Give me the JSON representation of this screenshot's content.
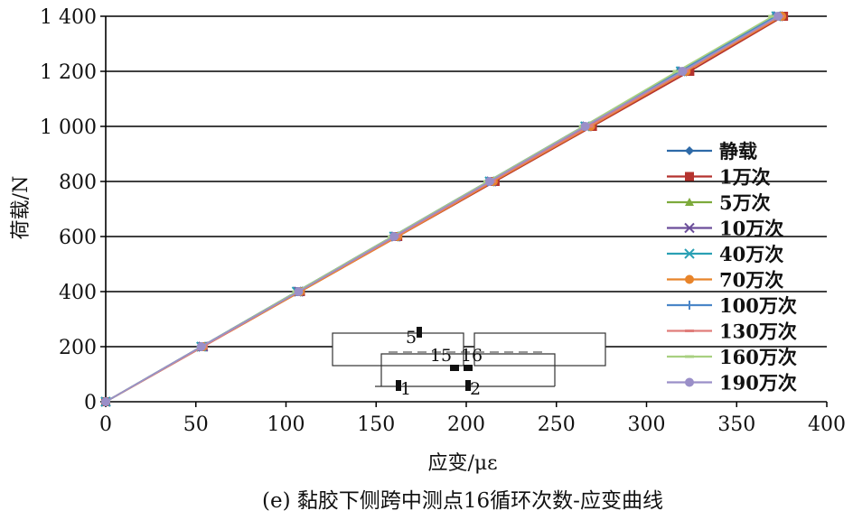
{
  "chart_data": {
    "type": "line",
    "caption": "(e) 黏胶下侧跨中测点16循环次数-应变曲线",
    "xlabel": "应变/με",
    "ylabel": "荷载/N",
    "xlim": [
      0,
      400
    ],
    "ylim": [
      0,
      1400
    ],
    "x_ticks": [
      "0",
      "50",
      "100",
      "150",
      "200",
      "250",
      "300",
      "350",
      "400"
    ],
    "y_ticks": [
      "0",
      "200",
      "400",
      "600",
      "800",
      "1 000",
      "1 200",
      "1 400"
    ],
    "grid": "horizontal",
    "legend_position": "right",
    "series": [
      {
        "name": "静载",
        "color": "#2e6aa8",
        "marker": "diamond",
        "x": [
          0,
          53,
          106,
          159,
          212,
          265,
          318,
          371
        ],
        "y": [
          0,
          200,
          400,
          600,
          800,
          1000,
          1200,
          1400
        ]
      },
      {
        "name": "1万次",
        "color": "#b5332e",
        "marker": "square",
        "x": [
          0,
          54,
          108,
          162,
          216,
          270,
          324,
          376
        ],
        "y": [
          0,
          200,
          400,
          600,
          800,
          1000,
          1200,
          1400
        ]
      },
      {
        "name": "5万次",
        "color": "#7daa3c",
        "marker": "triangle",
        "x": [
          0,
          53,
          106,
          160,
          213,
          266,
          319,
          372
        ],
        "y": [
          0,
          200,
          400,
          600,
          800,
          1000,
          1200,
          1400
        ]
      },
      {
        "name": "10万次",
        "color": "#6b4e9a",
        "marker": "x",
        "x": [
          0,
          54,
          107,
          161,
          214,
          267,
          320,
          373
        ],
        "y": [
          0,
          200,
          400,
          600,
          800,
          1000,
          1200,
          1400
        ]
      },
      {
        "name": "40万次",
        "color": "#2aa0b4",
        "marker": "x",
        "x": [
          0,
          53,
          106,
          160,
          213,
          266,
          319,
          372
        ],
        "y": [
          0,
          200,
          400,
          600,
          800,
          1000,
          1200,
          1400
        ]
      },
      {
        "name": "70万次",
        "color": "#e8842a",
        "marker": "circle",
        "x": [
          0,
          54,
          108,
          162,
          215,
          269,
          322,
          375
        ],
        "y": [
          0,
          200,
          400,
          600,
          800,
          1000,
          1200,
          1400
        ]
      },
      {
        "name": "100万次",
        "color": "#4a86c8",
        "marker": "plus",
        "x": [
          0,
          53,
          106,
          159,
          212,
          265,
          318,
          371
        ],
        "y": [
          0,
          200,
          400,
          600,
          800,
          1000,
          1200,
          1400
        ]
      },
      {
        "name": "130万次",
        "color": "#e07d7a",
        "marker": "dash",
        "x": [
          0,
          54,
          107,
          161,
          214,
          268,
          321,
          374
        ],
        "y": [
          0,
          200,
          400,
          600,
          800,
          1000,
          1200,
          1400
        ]
      },
      {
        "name": "160万次",
        "color": "#a8d080",
        "marker": "dash",
        "x": [
          0,
          53,
          106,
          159,
          212,
          265,
          317,
          370
        ],
        "y": [
          0,
          200,
          400,
          600,
          800,
          1000,
          1200,
          1400
        ]
      },
      {
        "name": "190万次",
        "color": "#9a8fc8",
        "marker": "circle",
        "x": [
          0,
          53,
          107,
          160,
          213,
          266,
          320,
          373
        ],
        "y": [
          0,
          200,
          400,
          600,
          800,
          1000,
          1200,
          1400
        ]
      }
    ],
    "inset_labels": [
      "5",
      "15",
      "16",
      "1",
      "2"
    ]
  }
}
